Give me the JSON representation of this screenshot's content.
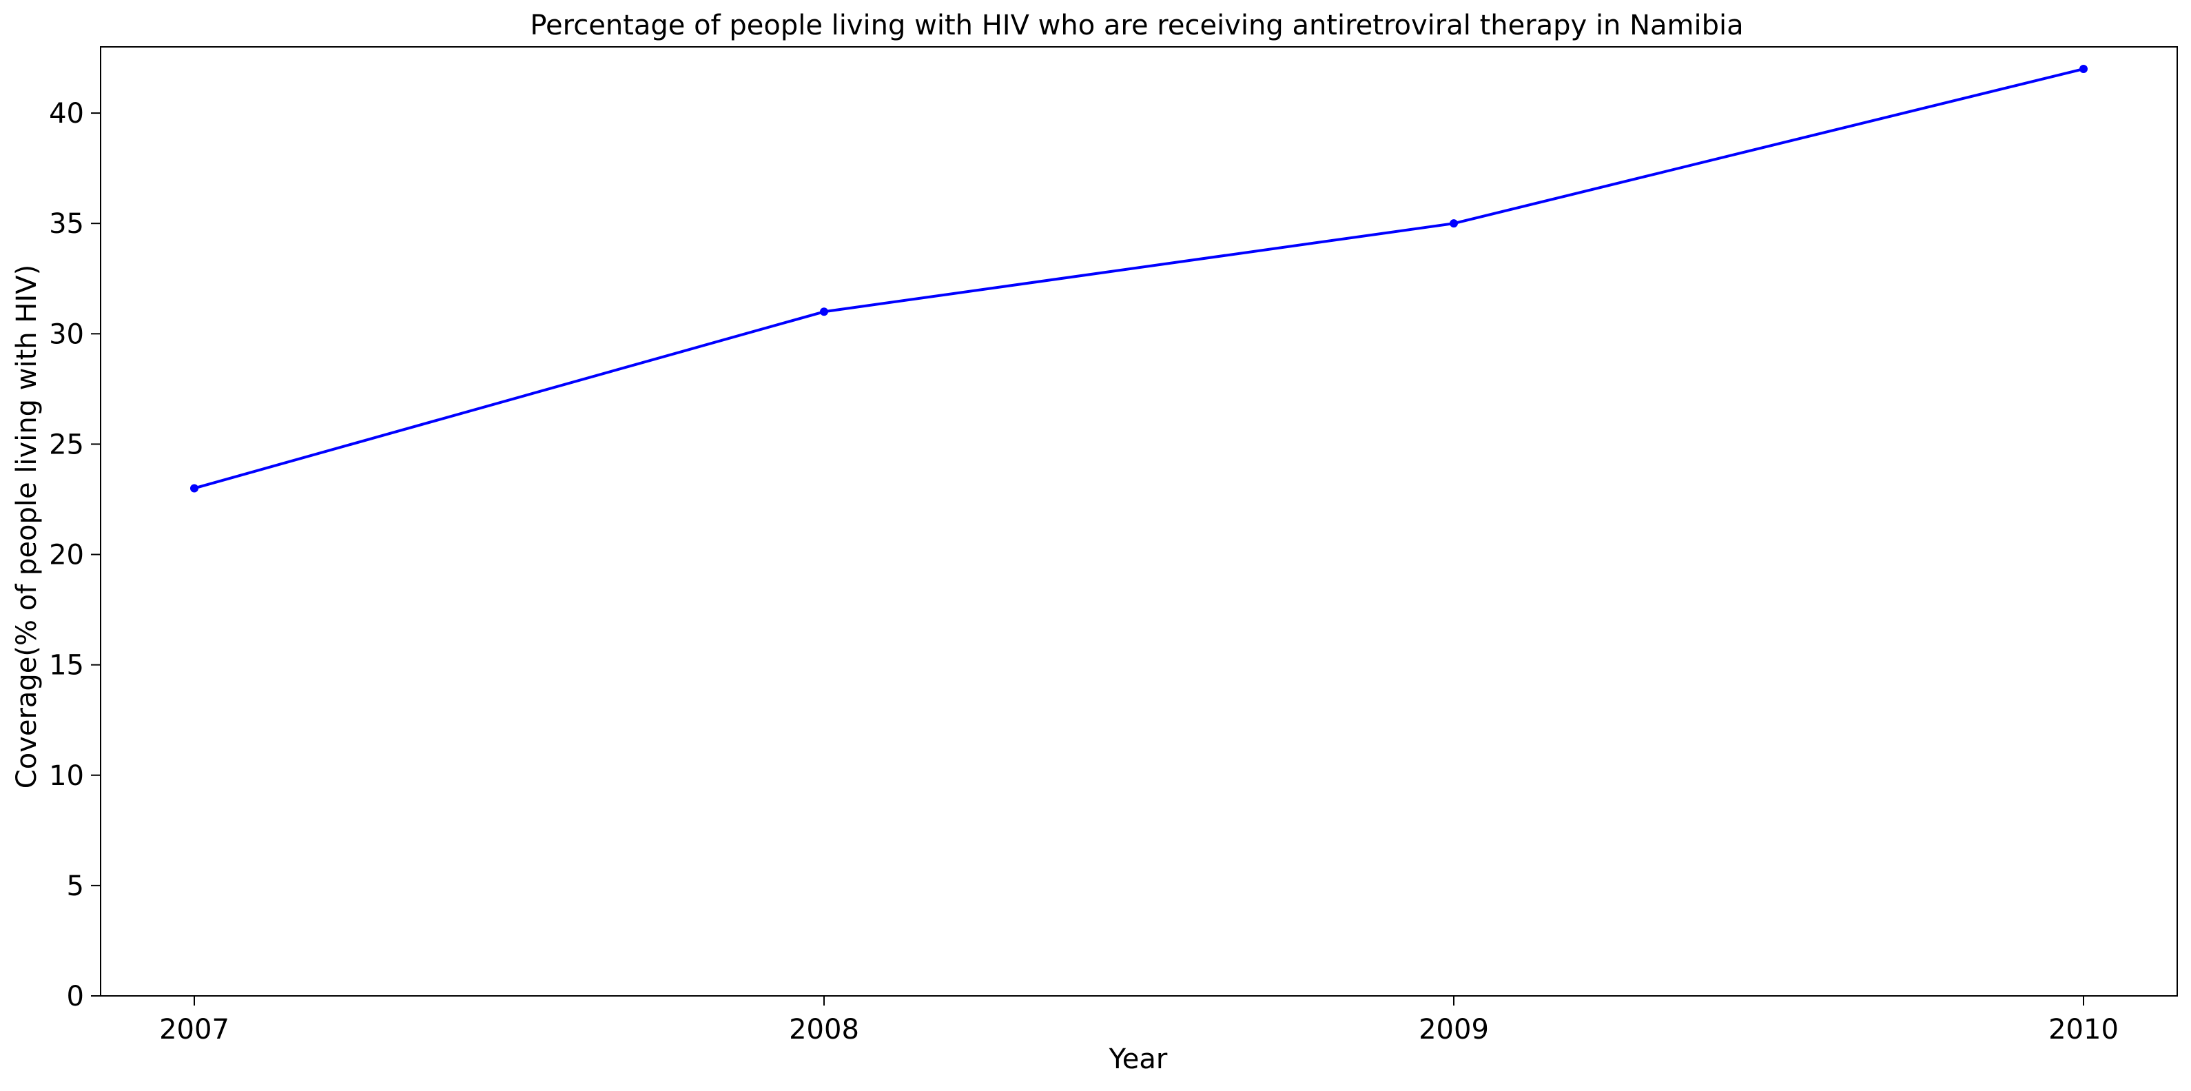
{
  "chart_data": {
    "type": "line",
    "title": "Percentage of people living with HIV who are receiving antiretroviral therapy in Namibia",
    "xlabel": "Year",
    "ylabel": "Coverage(% of people living with HIV)",
    "x": [
      "2007",
      "2008",
      "2009",
      "2010"
    ],
    "series": [
      {
        "values": [
          23,
          31,
          35,
          42
        ],
        "color": "#0000ff"
      }
    ],
    "ylim": [
      0,
      43
    ],
    "yticks": [
      0,
      5,
      10,
      15,
      20,
      25,
      30,
      35,
      40
    ],
    "grid": false,
    "legend": "none",
    "colors": {
      "line": "#0000ff",
      "axis": "#000000"
    }
  }
}
